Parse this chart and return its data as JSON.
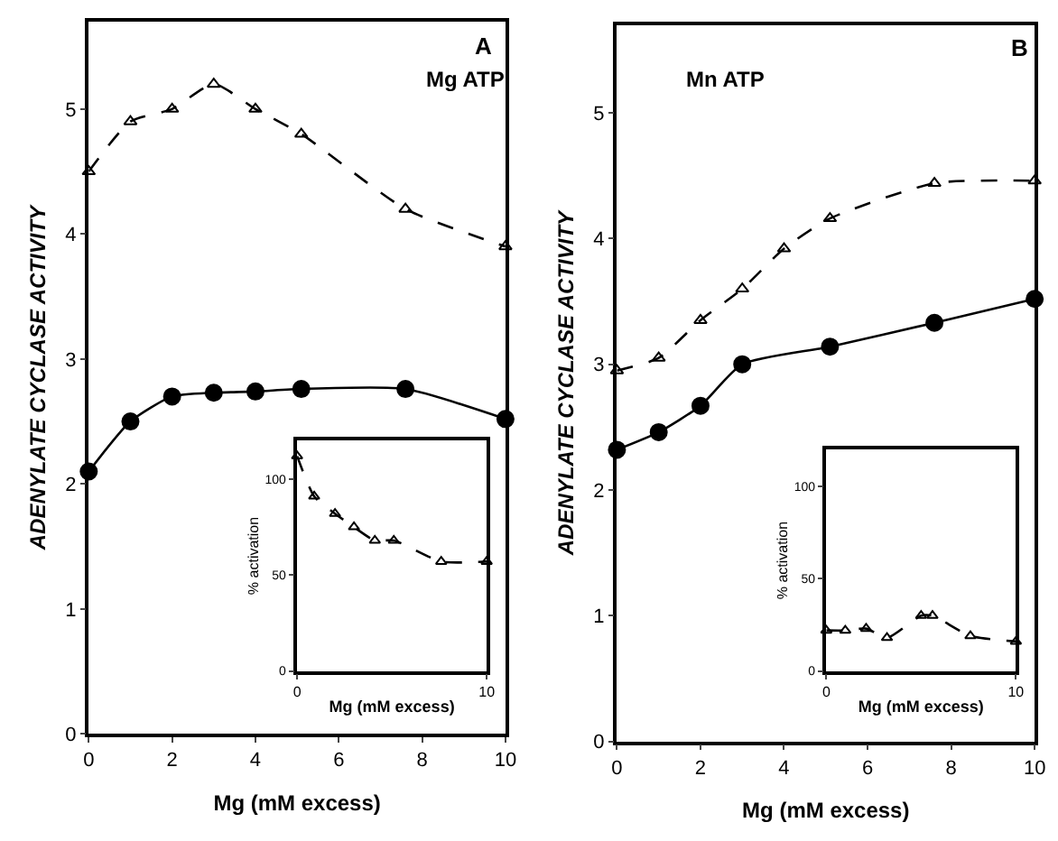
{
  "chart_data": [
    {
      "type": "line",
      "title": "A",
      "annotations": [
        "Mg ATP"
      ],
      "xlabel": "Mg (mM excess)",
      "ylabel": "ADENYLATE CYCLASE ACTIVITY",
      "xlim": [
        0,
        10
      ],
      "ylim": [
        0,
        5.7
      ],
      "xticks": [
        0,
        2,
        4,
        6,
        8,
        10
      ],
      "yticks": [
        0,
        1,
        2,
        3,
        4,
        5
      ],
      "series": [
        {
          "color": "#000000",
          "marker": "triangle",
          "line_style": "dashed",
          "x": [
            0,
            1,
            2,
            3,
            4,
            5.1,
            7.6,
            10
          ],
          "values": [
            4.5,
            4.9,
            5.0,
            5.2,
            5.0,
            4.8,
            4.2,
            3.9
          ]
        },
        {
          "color": "#000000",
          "marker": "circle",
          "line_style": "solid",
          "x": [
            0,
            1,
            2,
            3,
            4,
            5.1,
            7.6,
            10
          ],
          "values": [
            2.1,
            2.5,
            2.7,
            2.73,
            2.74,
            2.76,
            2.76,
            2.52
          ]
        }
      ]
    },
    {
      "type": "line",
      "xlabel": "Mg (mM excess)",
      "ylabel": "% activation",
      "xlim": [
        0,
        10
      ],
      "ylim": [
        0,
        120
      ],
      "xticks": [
        0,
        10
      ],
      "yticks": [
        0,
        50,
        100
      ],
      "series": [
        {
          "color": "#000000",
          "marker": "triangle",
          "line_style": "dashed",
          "x": [
            0,
            0.9,
            2.0,
            3.0,
            4.1,
            5.1,
            7.6,
            10
          ],
          "values": [
            112,
            91,
            82,
            75,
            68,
            68,
            57,
            57
          ]
        }
      ]
    },
    {
      "type": "line",
      "title": "B",
      "annotations": [
        "Mn ATP"
      ],
      "xlabel": "Mg (mM excess)",
      "ylabel": "ADENYLATE CYCLASE ACTIVITY",
      "xlim": [
        0,
        10
      ],
      "ylim": [
        0,
        5.7
      ],
      "xticks": [
        0,
        2,
        4,
        6,
        8,
        10
      ],
      "yticks": [
        0,
        1,
        2,
        3,
        4,
        5
      ],
      "series": [
        {
          "color": "#000000",
          "marker": "triangle",
          "line_style": "dashed",
          "x": [
            0,
            1,
            2,
            3,
            4,
            5.1,
            7.6,
            10
          ],
          "values": [
            2.95,
            3.05,
            3.35,
            3.6,
            3.92,
            4.16,
            4.44,
            4.46
          ]
        },
        {
          "color": "#000000",
          "marker": "circle",
          "line_style": "solid",
          "x": [
            0,
            1,
            2,
            3,
            5.1,
            7.6,
            10
          ],
          "values": [
            2.32,
            2.46,
            2.67,
            3.0,
            3.14,
            3.33,
            3.52
          ]
        }
      ]
    },
    {
      "type": "line",
      "xlabel": "Mg (mM excess)",
      "ylabel": "% activation",
      "xlim": [
        0,
        10
      ],
      "ylim": [
        0,
        120
      ],
      "xticks": [
        0,
        10
      ],
      "yticks": [
        0,
        50,
        100
      ],
      "series": [
        {
          "color": "#000000",
          "marker": "triangle",
          "line_style": "dashed",
          "x": [
            0,
            1,
            2.1,
            3.2,
            5.0,
            5.6,
            7.6,
            10
          ],
          "values": [
            22,
            22,
            23,
            18,
            30,
            30,
            19,
            16
          ]
        }
      ]
    }
  ]
}
